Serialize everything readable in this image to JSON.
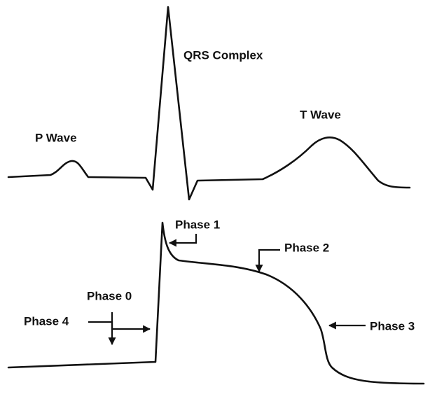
{
  "ecg": {
    "labels": [
      "P Wave",
      "QRS Complex",
      "T Wave"
    ]
  },
  "action_potential": {
    "phases": [
      "Phase 0",
      "Phase 1",
      "Phase 2",
      "Phase 3",
      "Phase 4"
    ]
  }
}
